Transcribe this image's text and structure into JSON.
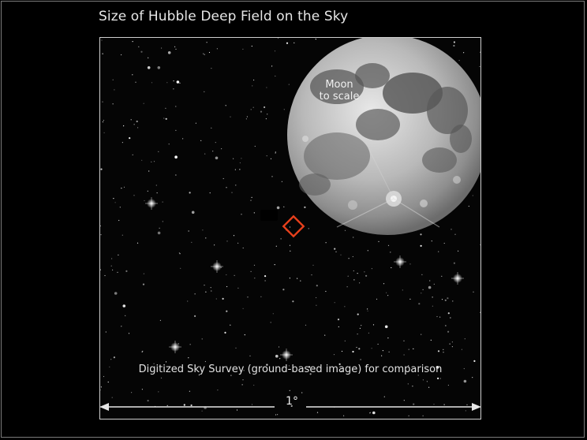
{
  "title": "Size of Hubble Deep Field on the Sky",
  "moon_label_line1": "Moon",
  "moon_label_line2": "to scale",
  "caption": "Digitized Sky Survey (ground-based image) for comparison",
  "scale_label": "1°",
  "colors": {
    "background": "#000000",
    "frame_border": "#cfcfcf",
    "hdf_marker": "#e8401c",
    "moon_highlight": "#e6e6e6",
    "moon_maria": "#4d4d4d"
  }
}
